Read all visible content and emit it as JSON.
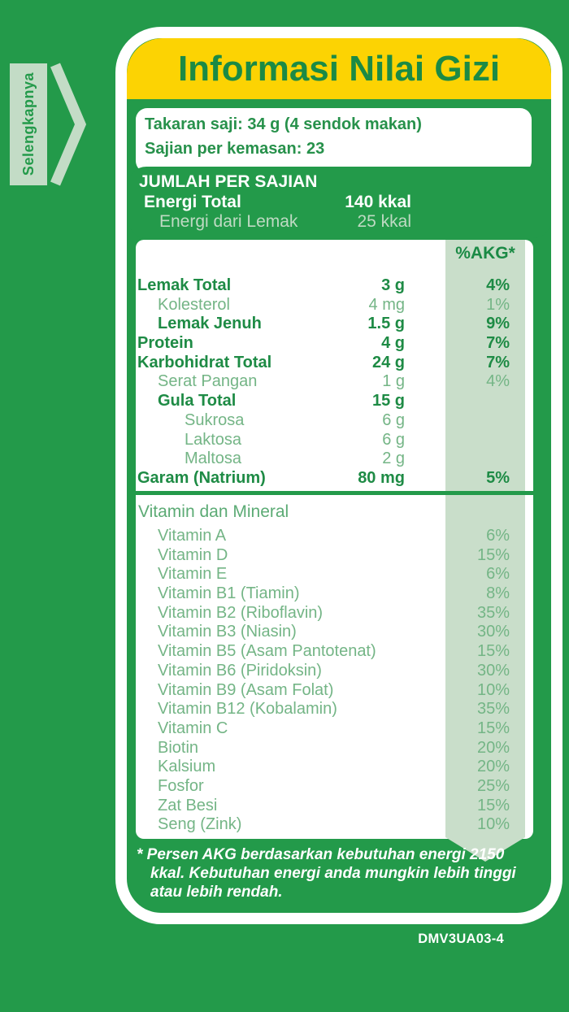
{
  "page": {
    "code": "DMV3UA03-4"
  },
  "side_tab": {
    "label": "Selengkapnya"
  },
  "header": {
    "title": "Informasi Nilai Gizi"
  },
  "serving": {
    "takaran_saji": "Takaran saji: 34 g (4 sendok makan)",
    "sajian_per_kemasan": "Sajian per kemasan: 23"
  },
  "per_serving": {
    "title": "JUMLAH PER SAJIAN",
    "rows": [
      {
        "label": "Energi Total",
        "value": "140 kkal",
        "emphasis": "bold"
      },
      {
        "label": "Energi dari Lemak",
        "value": "25 kkal",
        "emphasis": "pale"
      }
    ]
  },
  "akg_header": "%AKG*",
  "nutrients": [
    {
      "label": "Lemak Total",
      "amount": "3 g",
      "pct": "4%",
      "emphasis": "bold",
      "indent": 0
    },
    {
      "label": "Kolesterol",
      "amount": "4 mg",
      "pct": "1%",
      "emphasis": "light",
      "indent": 1
    },
    {
      "label": "Lemak Jenuh",
      "amount": "1.5 g",
      "pct": "9%",
      "emphasis": "bold",
      "indent": 1
    },
    {
      "label": "Protein",
      "amount": "4 g",
      "pct": "7%",
      "emphasis": "bold",
      "indent": 0
    },
    {
      "label": "Karbohidrat Total",
      "amount": "24 g",
      "pct": "7%",
      "emphasis": "bold",
      "indent": 0
    },
    {
      "label": "Serat Pangan",
      "amount": "1 g",
      "pct": "4%",
      "emphasis": "light",
      "indent": 1
    },
    {
      "label": "Gula Total",
      "amount": "15 g",
      "pct": "",
      "emphasis": "bold",
      "indent": 1
    },
    {
      "label": "Sukrosa",
      "amount": "6 g",
      "pct": "",
      "emphasis": "light",
      "indent": 2
    },
    {
      "label": "Laktosa",
      "amount": "6 g",
      "pct": "",
      "emphasis": "light",
      "indent": 2
    },
    {
      "label": "Maltosa",
      "amount": "2 g",
      "pct": "",
      "emphasis": "light",
      "indent": 2
    },
    {
      "label": "Garam (Natrium)",
      "amount": "80 mg",
      "pct": "5%",
      "emphasis": "bold",
      "indent": 0
    }
  ],
  "vitamins": {
    "title": "Vitamin dan Mineral",
    "rows": [
      {
        "label": "Vitamin A",
        "pct": "6%"
      },
      {
        "label": "Vitamin D",
        "pct": "15%"
      },
      {
        "label": "Vitamin E",
        "pct": "6%"
      },
      {
        "label": "Vitamin B1 (Tiamin)",
        "pct": "8%"
      },
      {
        "label": "Vitamin B2 (Riboflavin)",
        "pct": "35%"
      },
      {
        "label": "Vitamin B3 (Niasin)",
        "pct": "30%"
      },
      {
        "label": "Vitamin B5 (Asam Pantotenat)",
        "pct": "15%"
      },
      {
        "label": "Vitamin B6 (Piridoksin)",
        "pct": "30%"
      },
      {
        "label": "Vitamin B9 (Asam Folat)",
        "pct": "10%"
      },
      {
        "label": "Vitamin B12 (Kobalamin)",
        "pct": "35%"
      },
      {
        "label": "Vitamin C",
        "pct": "15%"
      },
      {
        "label": "Biotin",
        "pct": "20%"
      },
      {
        "label": "Kalsium",
        "pct": "20%"
      },
      {
        "label": "Fosfor",
        "pct": "25%"
      },
      {
        "label": "Zat Besi",
        "pct": "15%"
      },
      {
        "label": "Seng (Zink)",
        "pct": "10%"
      }
    ]
  },
  "footnote": {
    "lines": [
      "* Persen AKG berdasarkan kebutuhan energi 2150",
      "kkal. Kebutuhan energi anda mungkin lebih tinggi",
      "atau lebih rendah."
    ]
  },
  "colors": {
    "background_green": "#239a4a",
    "banner_yellow": "#fcd303",
    "dark_green_text": "#1b8a45",
    "light_green_text": "#74b586",
    "pale_green": "#c3dcc6",
    "akg_column_green": "#c9deca",
    "white": "#ffffff"
  }
}
